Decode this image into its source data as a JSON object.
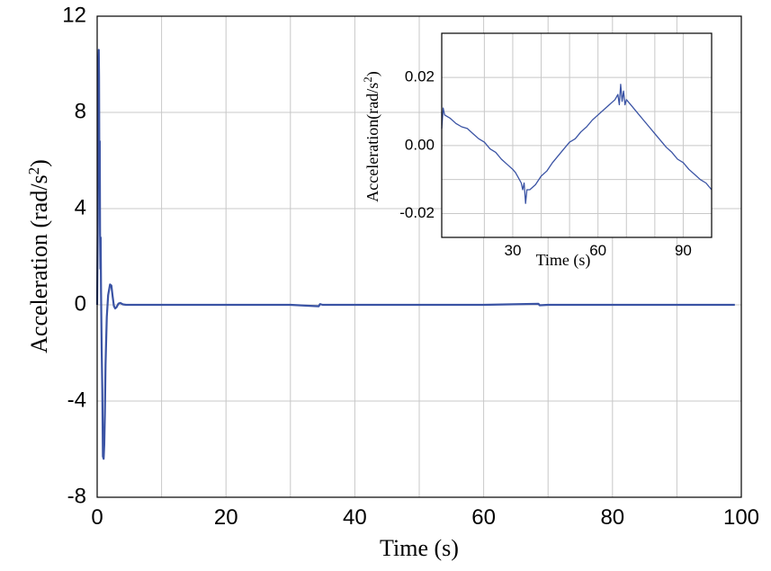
{
  "colors": {
    "series": "#3a53a4",
    "grid": "#c8c8c8",
    "frame": "#000000"
  },
  "chart_data": [
    {
      "type": "line",
      "name": "main",
      "xlabel": "Time (s)",
      "ylabel_prefix": "Acceleration (rad/s",
      "ylabel_sup": "2",
      "ylabel_suffix": ")",
      "xlim": [
        0,
        100
      ],
      "ylim": [
        -8,
        12
      ],
      "x_grid_step": 10,
      "y_grid_step": 4,
      "x_ticks": [
        0,
        20,
        40,
        60,
        80,
        100
      ],
      "x_tick_labels": [
        "0",
        "20",
        "40",
        "60",
        "80",
        "100"
      ],
      "y_ticks": [
        12,
        8,
        4,
        0,
        -4,
        -8
      ],
      "y_tick_labels": [
        "12",
        "8",
        "4",
        "0",
        "-4",
        "-8"
      ],
      "series": [
        {
          "name": "acceleration",
          "x": [
            0,
            0.1,
            0.2,
            0.25,
            0.3,
            0.35,
            0.4,
            0.45,
            0.5,
            0.55,
            0.6,
            0.7,
            0.8,
            0.9,
            1.0,
            1.1,
            1.2,
            1.3,
            1.5,
            1.7,
            2.0,
            2.2,
            2.4,
            2.6,
            2.8,
            3.0,
            3.3,
            3.6,
            4.0,
            4.5,
            5.0,
            6,
            8,
            10,
            20,
            30,
            34.4,
            34.6,
            35,
            40,
            50,
            60,
            68.5,
            68.7,
            70,
            80,
            90,
            99
          ],
          "values": [
            0,
            3.5,
            10.0,
            10.6,
            9.5,
            5.2,
            6.8,
            3.0,
            1.5,
            2.8,
            0.6,
            -1.8,
            -3.5,
            -6.3,
            -6.4,
            -5.8,
            -4.5,
            -2.5,
            -0.5,
            0.4,
            0.85,
            0.8,
            0.35,
            -0.05,
            -0.15,
            -0.1,
            0.05,
            0.08,
            0.02,
            0.0,
            0.0,
            0.0,
            0.0,
            0.0,
            0.0,
            0.0,
            -0.06,
            0.03,
            0.0,
            0.0,
            0.0,
            0.0,
            0.04,
            -0.02,
            0.0,
            0.0,
            0.0,
            0.0
          ]
        }
      ]
    },
    {
      "type": "line",
      "name": "inset",
      "xlabel": "Time (s)",
      "ylabel_prefix": "Acceleration(rad/s",
      "ylabel_sup": "2",
      "ylabel_suffix": ")",
      "xlim": [
        5,
        100
      ],
      "ylim": [
        -0.027,
        0.033
      ],
      "x_grid": [
        20,
        30,
        40,
        50,
        60,
        70,
        80,
        90
      ],
      "y_grid": [
        -0.02,
        -0.01,
        0.0,
        0.01,
        0.02
      ],
      "x_ticks": [
        30,
        60,
        90
      ],
      "x_tick_labels": [
        "30",
        "60",
        "90"
      ],
      "y_ticks": [
        0.02,
        0.0,
        -0.02
      ],
      "y_tick_labels": [
        "0.02",
        "0.00",
        "-0.02"
      ],
      "series": [
        {
          "name": "acceleration-zoom",
          "x": [
            5,
            5.5,
            6,
            7,
            8,
            10,
            12,
            14,
            16,
            18,
            20,
            22,
            24,
            26,
            28,
            30,
            31,
            32,
            33,
            33.5,
            34,
            34.5,
            35,
            36,
            38,
            40,
            42,
            44,
            46,
            48,
            50,
            52,
            54,
            56,
            58,
            60,
            62,
            64,
            66,
            67,
            67.5,
            68,
            68.5,
            69,
            69.5,
            70,
            72,
            74,
            76,
            78,
            80,
            82,
            84,
            86,
            88,
            90,
            92,
            94,
            96,
            98,
            100
          ],
          "values": [
            0.005,
            0.011,
            0.009,
            0.0085,
            0.008,
            0.0065,
            0.0055,
            0.005,
            0.0035,
            0.002,
            0.001,
            -0.001,
            -0.002,
            -0.004,
            -0.0055,
            -0.007,
            -0.008,
            -0.0095,
            -0.011,
            -0.013,
            -0.011,
            -0.017,
            -0.013,
            -0.013,
            -0.0115,
            -0.009,
            -0.0075,
            -0.005,
            -0.003,
            -0.001,
            0.001,
            0.002,
            0.004,
            0.0055,
            0.0075,
            0.009,
            0.0105,
            0.012,
            0.0135,
            0.015,
            0.012,
            0.018,
            0.013,
            0.016,
            0.012,
            0.0135,
            0.0115,
            0.0095,
            0.0075,
            0.0055,
            0.0035,
            0.0015,
            -0.0005,
            -0.002,
            -0.004,
            -0.005,
            -0.007,
            -0.0085,
            -0.01,
            -0.011,
            -0.013
          ]
        }
      ]
    }
  ]
}
